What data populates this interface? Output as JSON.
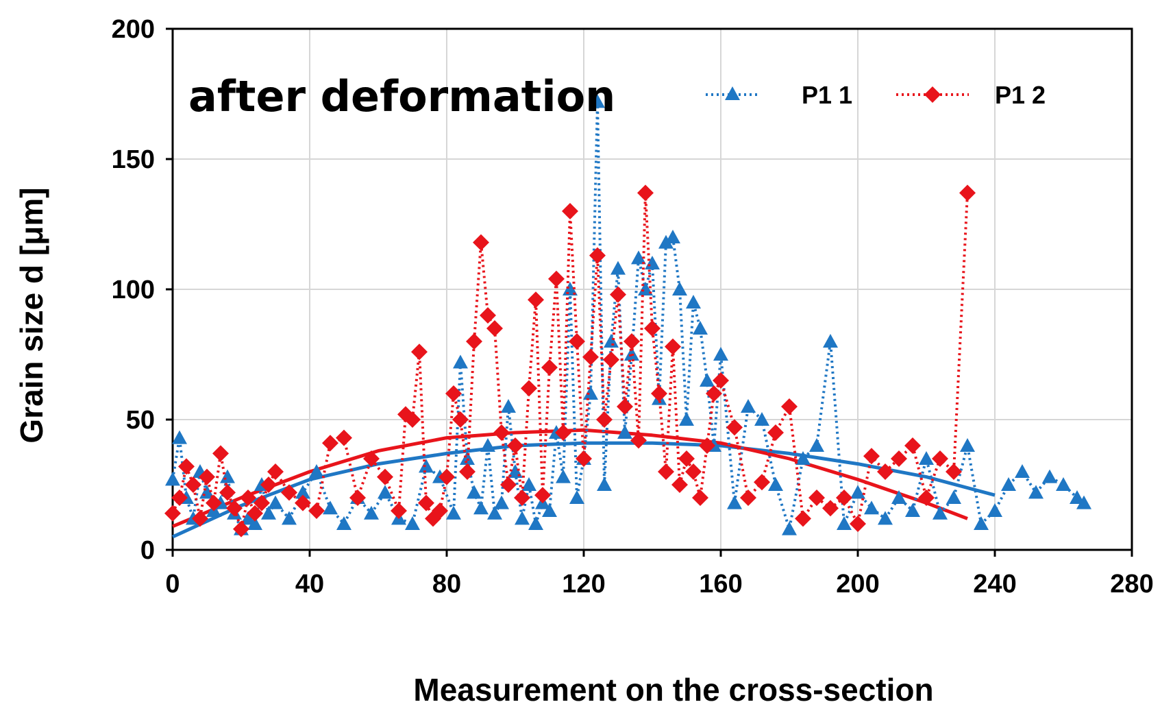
{
  "chart_data": {
    "type": "line",
    "title": "",
    "annotation": "after deformation",
    "xlabel": "Measurement on the cross-section",
    "ylabel": "Grain size d [μm]",
    "xlim": [
      0,
      280
    ],
    "ylim": [
      0,
      200
    ],
    "xticks": [
      0,
      40,
      80,
      120,
      160,
      200,
      240,
      280
    ],
    "yticks": [
      0,
      50,
      100,
      150,
      200
    ],
    "grid": true,
    "legend_position": "top-right",
    "series": [
      {
        "name": "P1 1",
        "color": "#1f77c4",
        "marker": "triangle",
        "x": [
          0,
          2,
          4,
          6,
          8,
          10,
          12,
          14,
          16,
          18,
          20,
          22,
          24,
          26,
          28,
          30,
          34,
          38,
          42,
          46,
          50,
          54,
          58,
          62,
          66,
          70,
          74,
          78,
          82,
          84,
          86,
          88,
          90,
          92,
          94,
          96,
          98,
          100,
          102,
          104,
          106,
          108,
          110,
          112,
          114,
          116,
          118,
          120,
          122,
          124,
          126,
          128,
          130,
          132,
          134,
          136,
          138,
          140,
          142,
          144,
          146,
          148,
          150,
          152,
          154,
          156,
          158,
          160,
          164,
          168,
          172,
          176,
          180,
          184,
          188,
          192,
          196,
          200,
          204,
          208,
          212,
          216,
          220,
          224,
          228,
          232,
          236,
          240,
          244,
          248,
          252,
          256,
          260,
          264,
          266
        ],
        "values": [
          27,
          43,
          20,
          12,
          30,
          22,
          15,
          18,
          28,
          14,
          8,
          12,
          10,
          25,
          14,
          18,
          12,
          22,
          30,
          16,
          10,
          20,
          14,
          22,
          12,
          10,
          32,
          28,
          14,
          72,
          35,
          22,
          16,
          40,
          14,
          18,
          55,
          30,
          12,
          25,
          10,
          18,
          15,
          45,
          28,
          100,
          20,
          35,
          60,
          172,
          25,
          80,
          108,
          45,
          75,
          112,
          100,
          110,
          58,
          118,
          120,
          100,
          50,
          95,
          85,
          65,
          40,
          75,
          18,
          55,
          50,
          25,
          8,
          35,
          40,
          80,
          10,
          22,
          16,
          12,
          20,
          15,
          35,
          14,
          20,
          40,
          10,
          15,
          25,
          30,
          22,
          28,
          25,
          20,
          18
        ]
      },
      {
        "name": "P1 2",
        "color": "#e8141b",
        "marker": "diamond",
        "x": [
          0,
          2,
          4,
          6,
          8,
          10,
          12,
          14,
          16,
          18,
          20,
          22,
          24,
          26,
          28,
          30,
          34,
          38,
          42,
          46,
          50,
          54,
          58,
          62,
          66,
          68,
          70,
          72,
          74,
          76,
          78,
          80,
          82,
          84,
          86,
          88,
          90,
          92,
          94,
          96,
          98,
          100,
          102,
          104,
          106,
          108,
          110,
          112,
          114,
          116,
          118,
          120,
          122,
          124,
          126,
          128,
          130,
          132,
          134,
          136,
          138,
          140,
          142,
          144,
          146,
          148,
          150,
          152,
          154,
          156,
          158,
          160,
          164,
          168,
          172,
          176,
          180,
          184,
          188,
          192,
          196,
          200,
          204,
          208,
          212,
          216,
          220,
          224,
          228,
          232
        ],
        "values": [
          14,
          20,
          32,
          25,
          12,
          28,
          18,
          37,
          22,
          16,
          8,
          20,
          14,
          18,
          25,
          30,
          22,
          18,
          15,
          41,
          43,
          20,
          35,
          28,
          15,
          52,
          50,
          76,
          18,
          12,
          15,
          28,
          60,
          50,
          30,
          80,
          118,
          90,
          85,
          45,
          25,
          40,
          20,
          62,
          96,
          21,
          70,
          104,
          45,
          130,
          80,
          35,
          74,
          113,
          50,
          73,
          98,
          55,
          80,
          42,
          137,
          85,
          60,
          30,
          78,
          25,
          35,
          30,
          20,
          40,
          60,
          65,
          47,
          20,
          26,
          45,
          55,
          12,
          20,
          16,
          20,
          10,
          36,
          30,
          35,
          40,
          20,
          35,
          30,
          137
        ]
      }
    ],
    "trendlines": [
      {
        "name": "P1 1 trend",
        "color": "#1f77c4",
        "type": "polynomial",
        "x": [
          0,
          20,
          40,
          60,
          80,
          100,
          120,
          140,
          160,
          180,
          200,
          220,
          240
        ],
        "values": [
          5,
          17,
          27,
          33,
          37,
          40,
          41,
          41,
          40,
          37,
          33,
          28,
          21
        ]
      },
      {
        "name": "P1 2 trend",
        "color": "#e8141b",
        "type": "polynomial",
        "x": [
          0,
          20,
          40,
          60,
          80,
          100,
          120,
          140,
          160,
          180,
          200,
          220,
          232
        ],
        "values": [
          9,
          20,
          30,
          38,
          43,
          45,
          46,
          44,
          41,
          35,
          27,
          18,
          12
        ]
      }
    ]
  }
}
